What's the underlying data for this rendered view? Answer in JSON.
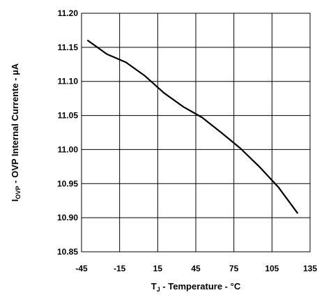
{
  "chart_data": {
    "type": "line",
    "title": "",
    "xlabel": {
      "prefix": "T",
      "subscript": "J",
      "suffix": " - Temperature - °C"
    },
    "ylabel": {
      "prefix": "I",
      "subscript": "OVP",
      "suffix": " - OVP Internal Currente - µA"
    },
    "xlim": [
      -45,
      135
    ],
    "ylim": [
      10.85,
      11.2
    ],
    "x_ticks": [
      "-45",
      "-15",
      "15",
      "45",
      "75",
      "105",
      "135"
    ],
    "y_ticks": [
      "10.85",
      "10.90",
      "10.95",
      "11.00",
      "11.05",
      "11.10",
      "11.15",
      "11.20"
    ],
    "grid": true,
    "legend": "none",
    "line_color": "#000000",
    "series": [
      {
        "x": [
          -40,
          -25,
          -10,
          5,
          20,
          35,
          50,
          65,
          80,
          95,
          110,
          125
        ],
        "values": [
          11.16,
          11.14,
          11.128,
          11.108,
          11.083,
          11.063,
          11.047,
          11.025,
          11.002,
          10.975,
          10.945,
          10.907
        ]
      }
    ]
  }
}
